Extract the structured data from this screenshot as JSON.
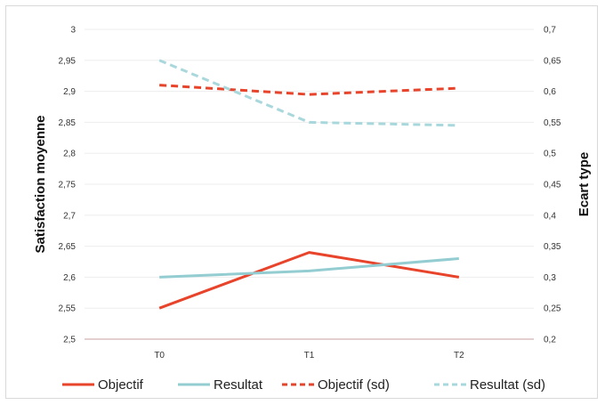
{
  "chart_data": {
    "type": "line",
    "categories": [
      "T0",
      "T1",
      "T2"
    ],
    "ylabel": "Satisfaction moyenne",
    "y2label": "Ecart type",
    "ylim": [
      2.5,
      3.0
    ],
    "y2lim": [
      0.2,
      0.7
    ],
    "yticks": [
      "2,5",
      "2,55",
      "2,6",
      "2,65",
      "2,7",
      "2,75",
      "2,8",
      "2,85",
      "2,9",
      "2,95",
      "3"
    ],
    "y2ticks": [
      "0,2",
      "0,25",
      "0,3",
      "0,35",
      "0,4",
      "0,45",
      "0,5",
      "0,55",
      "0,6",
      "0,65",
      "0,7"
    ],
    "grid": true,
    "legend_position": "bottom",
    "series": [
      {
        "name": "Objectif",
        "axis": "left",
        "style": "solid",
        "color": "#e8432b",
        "values": [
          2.55,
          2.64,
          2.6
        ]
      },
      {
        "name": "Resultat",
        "axis": "left",
        "style": "solid",
        "color": "#93cdd2",
        "values": [
          2.6,
          2.61,
          2.63
        ]
      },
      {
        "name": "Objectif (sd)",
        "axis": "right",
        "style": "dashed",
        "color": "#e8432b",
        "values": [
          0.61,
          0.595,
          0.605
        ]
      },
      {
        "name": "Resultat (sd)",
        "axis": "right",
        "style": "dashed",
        "color": "#a9d8dc",
        "values": [
          0.65,
          0.55,
          0.545
        ]
      }
    ]
  }
}
